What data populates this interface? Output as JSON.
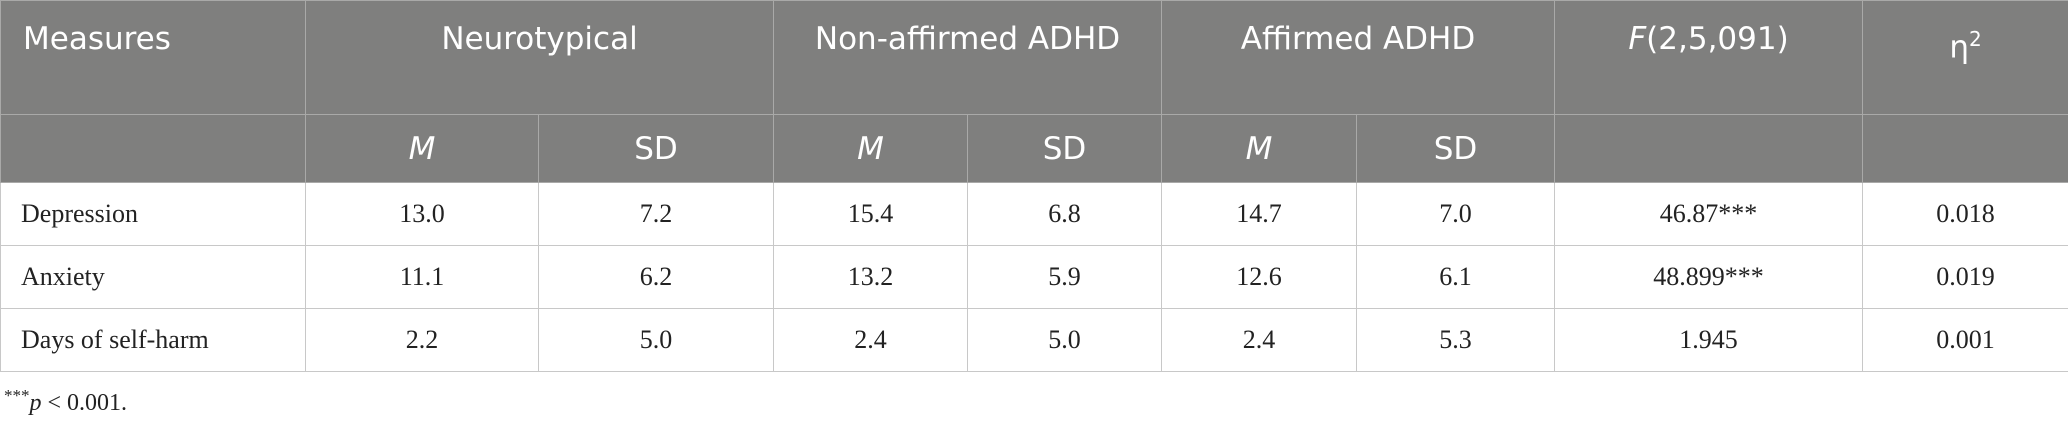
{
  "header": {
    "measures": "Measures",
    "groups": [
      "Neurotypical",
      "Non-affirmed ADHD",
      "Affirmed ADHD"
    ],
    "f_stat": {
      "symbol": "F",
      "df": "(2,5,091)"
    },
    "effect": {
      "symbol": "η",
      "sup": "2"
    },
    "sub": [
      "M",
      "SD",
      "M",
      "SD",
      "M",
      "SD"
    ]
  },
  "table": {
    "rows": [
      [
        "Depression",
        "13.0",
        "7.2",
        "15.4",
        "6.8",
        "14.7",
        "7.0",
        "46.87***",
        "0.018"
      ],
      [
        "Anxiety",
        "11.1",
        "6.2",
        "13.2",
        "5.9",
        "12.6",
        "6.1",
        "48.899***",
        "0.019"
      ],
      [
        "Days of self-harm",
        "2.2",
        "5.0",
        "2.4",
        "5.0",
        "2.4",
        "5.3",
        "1.945",
        "0.001"
      ]
    ]
  },
  "footnote": {
    "stars": "***",
    "p": "p",
    "text": "< 0.001."
  }
}
